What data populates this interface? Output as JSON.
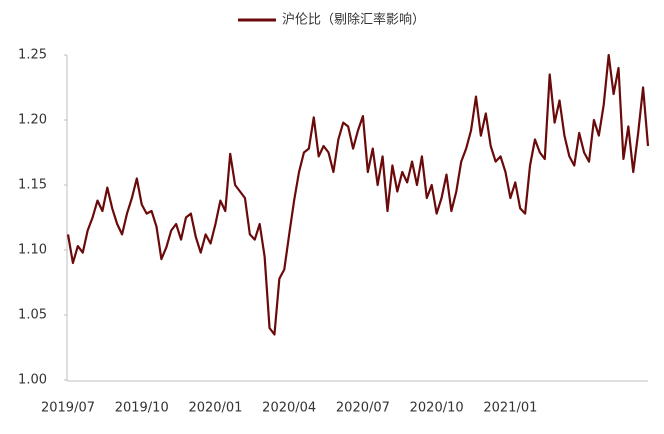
{
  "chart_data": {
    "type": "line",
    "categories": [
      "2019/07",
      null,
      null,
      null,
      null,
      null,
      null,
      null,
      null,
      null,
      null,
      null,
      null,
      null,
      null,
      "2019/10",
      null,
      null,
      null,
      null,
      null,
      null,
      null,
      null,
      null,
      null,
      null,
      null,
      null,
      null,
      "2020/01",
      null,
      null,
      null,
      null,
      null,
      null,
      null,
      null,
      null,
      null,
      null,
      null,
      null,
      null,
      "2020/04",
      null,
      null,
      null,
      null,
      null,
      null,
      null,
      null,
      null,
      null,
      null,
      null,
      null,
      null,
      "2020/07",
      null,
      null,
      null,
      null,
      null,
      null,
      null,
      null,
      null,
      null,
      null,
      null,
      null,
      null,
      "2020/10",
      null,
      null,
      null,
      null,
      null,
      null,
      null,
      null,
      null,
      null,
      null,
      null,
      null,
      null,
      "2021/01",
      null,
      null,
      null,
      null,
      null,
      null,
      null,
      null,
      null,
      null,
      null,
      null,
      null,
      null,
      null,
      null,
      null,
      null,
      null,
      null,
      null,
      null,
      null,
      null,
      null,
      null,
      null,
      null
    ],
    "series": [
      {
        "name": "沪伦比（剔除汇率影响）",
        "color": "#6b0a0a",
        "values": [
          1.112,
          1.09,
          1.103,
          1.098,
          1.115,
          1.125,
          1.138,
          1.13,
          1.148,
          1.132,
          1.12,
          1.112,
          1.128,
          1.14,
          1.155,
          1.135,
          1.128,
          1.13,
          1.118,
          1.093,
          1.102,
          1.115,
          1.12,
          1.108,
          1.125,
          1.128,
          1.11,
          1.098,
          1.112,
          1.105,
          1.12,
          1.138,
          1.13,
          1.174,
          1.15,
          1.145,
          1.14,
          1.112,
          1.108,
          1.12,
          1.095,
          1.04,
          1.035,
          1.078,
          1.085,
          1.112,
          1.138,
          1.16,
          1.175,
          1.178,
          1.202,
          1.172,
          1.18,
          1.175,
          1.16,
          1.185,
          1.198,
          1.195,
          1.178,
          1.192,
          1.203,
          1.16,
          1.178,
          1.15,
          1.172,
          1.13,
          1.165,
          1.145,
          1.16,
          1.152,
          1.168,
          1.15,
          1.172,
          1.14,
          1.15,
          1.128,
          1.14,
          1.158,
          1.13,
          1.145,
          1.168,
          1.178,
          1.192,
          1.218,
          1.188,
          1.205,
          1.18,
          1.168,
          1.172,
          1.16,
          1.14,
          1.152,
          1.132,
          1.128,
          1.165,
          1.185,
          1.175,
          1.17,
          1.235,
          1.198,
          1.215,
          1.188,
          1.172,
          1.165,
          1.19,
          1.175,
          1.168,
          1.2,
          1.188,
          1.212,
          1.25,
          1.22,
          1.24,
          1.17,
          1.195,
          1.16,
          1.19,
          1.225,
          1.18
        ]
      }
    ],
    "ylim": [
      1.0,
      1.25
    ],
    "yticks": [
      {
        "value": 1.0,
        "label": "1.00"
      },
      1.05,
      {
        "value": 1.1,
        "label": "1.10"
      },
      1.15,
      {
        "value": 1.2,
        "label": "1.20"
      },
      1.25
    ],
    "grid": false,
    "legend": "top"
  }
}
